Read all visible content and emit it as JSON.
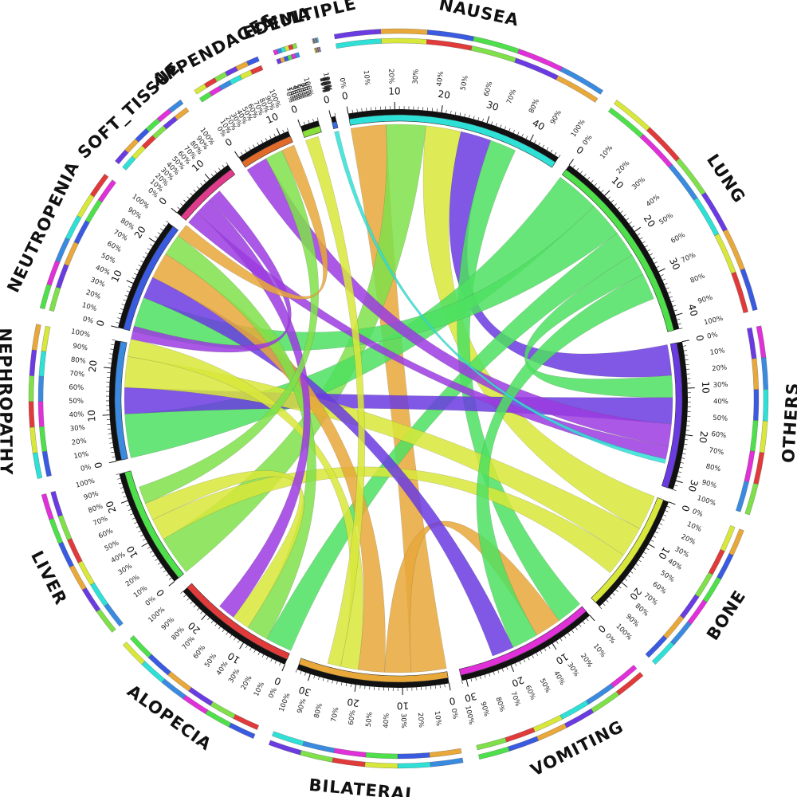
{
  "chart_data": {
    "type": "chord",
    "title": "",
    "tick_step": 10,
    "percent_ticks": [
      "0%",
      "10%",
      "20%",
      "30%",
      "40%",
      "50%",
      "60%",
      "70%",
      "80%",
      "90%",
      "100%"
    ],
    "segments": [
      {
        "name": "NAUSEA",
        "size": 47,
        "color": "#2ee0d6"
      },
      {
        "name": "LUNG",
        "size": 43,
        "color": "#4ee04a"
      },
      {
        "name": "OTHERS",
        "size": 32,
        "color": "#6a3be0"
      },
      {
        "name": "BONE",
        "size": 27,
        "color": "#d8e83a"
      },
      {
        "name": "VOMITING",
        "size": 31,
        "color": "#e030d8"
      },
      {
        "name": "BILATERAL",
        "size": 33,
        "color": "#e8a83a"
      },
      {
        "name": "ALOPECIA",
        "size": 27,
        "color": "#e03a3a"
      },
      {
        "name": "LIVER",
        "size": 26,
        "color": "#4ee04a"
      },
      {
        "name": "NEPHROPATHY",
        "size": 26,
        "color": "#3a8ae0"
      },
      {
        "name": "NEUTROPENIA",
        "size": 25,
        "color": "#3a5ae0"
      },
      {
        "name": "SOFT_TISSUE",
        "size": 15,
        "color": "#e03a8a"
      },
      {
        "name": "APPENDAGES",
        "size": 12,
        "color": "#e06a2a"
      },
      {
        "name": "EDEMA",
        "size": 4,
        "color": "#8ae03a"
      },
      {
        "name": "MULTIPLE",
        "size": 1,
        "color": "#3a6ae0"
      }
    ],
    "links": [
      {
        "source": "NAUSEA",
        "target": "BILATERAL",
        "value": 8,
        "color": "#e8a83a"
      },
      {
        "source": "NAUSEA",
        "target": "LIVER",
        "value": 9,
        "color": "#7fe04a"
      },
      {
        "source": "NAUSEA",
        "target": "BONE",
        "value": 8,
        "color": "#d8e83a"
      },
      {
        "source": "NAUSEA",
        "target": "OTHERS",
        "value": 7,
        "color": "#6a3be0"
      },
      {
        "source": "NAUSEA",
        "target": "VOMITING",
        "value": 6,
        "color": "#4ee060"
      },
      {
        "source": "LUNG",
        "target": "NEPHROPATHY",
        "value": 10,
        "color": "#4ee060"
      },
      {
        "source": "LUNG",
        "target": "NEUTROPENIA",
        "value": 8,
        "color": "#4ee060"
      },
      {
        "source": "LUNG",
        "target": "ALOPECIA",
        "value": 6,
        "color": "#4ee060"
      },
      {
        "source": "LUNG",
        "target": "OTHERS",
        "value": 5,
        "color": "#4ee060"
      },
      {
        "source": "OTHERS",
        "target": "NEPHROPATHY",
        "value": 6,
        "color": "#6a3be0"
      },
      {
        "source": "OTHERS",
        "target": "APPENDAGES",
        "value": 5,
        "color": "#9b3be0"
      },
      {
        "source": "OTHERS",
        "target": "SOFT_TISSUE",
        "value": 3,
        "color": "#9b3be0"
      },
      {
        "source": "BONE",
        "target": "NEPHROPATHY",
        "value": 7,
        "color": "#d8e83a"
      },
      {
        "source": "BONE",
        "target": "LIVER",
        "value": 5,
        "color": "#d8e83a"
      },
      {
        "source": "VOMITING",
        "target": "BILATERAL",
        "value": 6,
        "color": "#e8a83a"
      },
      {
        "source": "VOMITING",
        "target": "LUNG",
        "value": 6,
        "color": "#4ee060"
      },
      {
        "source": "VOMITING",
        "target": "NEUTROPENIA",
        "value": 5,
        "color": "#6a3be0"
      },
      {
        "source": "BILATERAL",
        "target": "NEUTROPENIA",
        "value": 6,
        "color": "#e8a83a"
      },
      {
        "source": "BILATERAL",
        "target": "NEPHROPATHY",
        "value": 4,
        "color": "#d8e83a"
      },
      {
        "source": "ALOPECIA",
        "target": "NEUTROPENIA",
        "value": 5,
        "color": "#7fe04a"
      },
      {
        "source": "ALOPECIA",
        "target": "LIVER",
        "value": 4,
        "color": "#d8e83a"
      },
      {
        "source": "ALOPECIA",
        "target": "SOFT_TISSUE",
        "value": 4,
        "color": "#9b3be0"
      },
      {
        "source": "LIVER",
        "target": "APPENDAGES",
        "value": 4,
        "color": "#7fe04a"
      },
      {
        "source": "SOFT_TISSUE",
        "target": "NEPHROPATHY",
        "value": 3,
        "color": "#9b3be0"
      },
      {
        "source": "EDEMA",
        "target": "BILATERAL",
        "value": 3,
        "color": "#d8e83a"
      },
      {
        "source": "APPENDAGES",
        "target": "NEUTROPENIA",
        "value": 3,
        "color": "#e8a83a"
      },
      {
        "source": "MULTIPLE",
        "target": "OTHERS",
        "value": 1,
        "color": "#2ee0d6"
      }
    ]
  }
}
